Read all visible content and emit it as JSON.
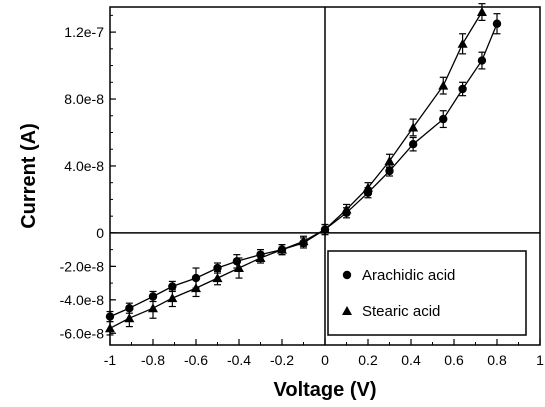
{
  "chart_data": {
    "type": "scatter",
    "xlabel": "Voltage (V)",
    "ylabel": "Current (A)",
    "xlim": [
      -1,
      1
    ],
    "ylim": [
      -6.7e-08,
      1.35e-07
    ],
    "xticks": [
      -1,
      -0.8,
      -0.6,
      -0.4,
      -0.2,
      0,
      0.2,
      0.4,
      0.6,
      0.8,
      1
    ],
    "xtick_labels": [
      "-1",
      "-0.8",
      "-0.6",
      "-0.4",
      "-0.2",
      "0",
      "0.2",
      "0.4",
      "0.6",
      "0.8",
      "1"
    ],
    "yticks": [
      -6e-08,
      -4e-08,
      -2e-08,
      0,
      4e-08,
      8e-08,
      1.2e-07
    ],
    "ytick_labels": [
      "-6.0e-8",
      "-4.0e-8",
      "-2.0e-8",
      "0",
      "4.0e-8",
      "8.0e-8",
      "1.2e-7"
    ],
    "grid": false,
    "legend_position": "bottom-right",
    "series": [
      {
        "name": "Arachidic acid",
        "marker": "circle",
        "color": "#000000",
        "x": [
          -1.0,
          -0.91,
          -0.8,
          -0.71,
          -0.6,
          -0.5,
          -0.41,
          -0.3,
          -0.2,
          -0.1,
          0.0,
          0.1,
          0.2,
          0.3,
          0.41,
          0.55,
          0.64,
          0.73,
          0.8
        ],
        "y": [
          -5e-08,
          -4.5e-08,
          -3.8e-08,
          -3.2e-08,
          -2.7e-08,
          -2.1e-08,
          -1.7e-08,
          -1.3e-08,
          -1e-08,
          -6e-09,
          2e-09,
          1.2e-08,
          2.4e-08,
          3.7e-08,
          5.3e-08,
          6.8e-08,
          8.6e-08,
          1.03e-07,
          1.25e-07
        ],
        "error": [
          3e-09,
          3e-09,
          3e-09,
          3e-09,
          6e-09,
          3e-09,
          4e-09,
          3e-09,
          3e-09,
          3e-09,
          3e-09,
          3e-09,
          3e-09,
          3e-09,
          4e-09,
          5e-09,
          4e-09,
          5e-09,
          6e-09
        ]
      },
      {
        "name": "Stearic acid",
        "marker": "triangle",
        "color": "#000000",
        "x": [
          -1.0,
          -0.91,
          -0.8,
          -0.71,
          -0.6,
          -0.5,
          -0.4,
          -0.3,
          -0.2,
          -0.1,
          0.0,
          0.1,
          0.2,
          0.3,
          0.41,
          0.55,
          0.64,
          0.73
        ],
        "y": [
          -5.7e-08,
          -5.1e-08,
          -4.5e-08,
          -3.9e-08,
          -3.3e-08,
          -2.7e-08,
          -2.1e-08,
          -1.5e-08,
          -1e-08,
          -5e-09,
          2e-09,
          1.4e-08,
          2.7e-08,
          4.3e-08,
          6.3e-08,
          8.8e-08,
          1.13e-07,
          1.32e-07
        ],
        "error": [
          4e-09,
          5e-09,
          6e-09,
          5e-09,
          5e-09,
          4e-09,
          6e-09,
          3e-09,
          3e-09,
          3e-09,
          3e-09,
          3e-09,
          3e-09,
          4e-09,
          5e-09,
          5e-09,
          6e-09,
          5e-09
        ]
      }
    ]
  }
}
